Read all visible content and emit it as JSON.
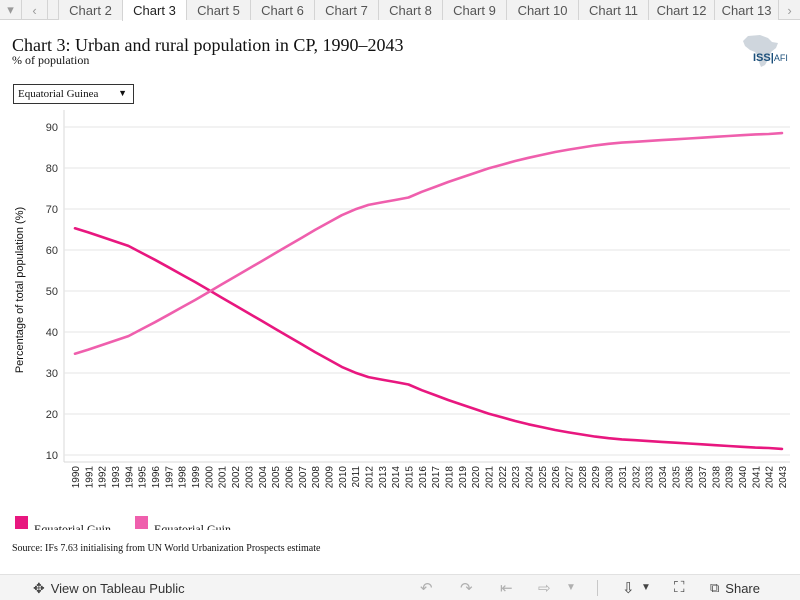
{
  "tabs": {
    "items": [
      "Chart 2",
      "Chart 3",
      "Chart 5",
      "Chart 6",
      "Chart 7",
      "Chart 8",
      "Chart 9",
      "Chart 10",
      "Chart 11",
      "Chart 12",
      "Chart 13"
    ],
    "active_index": 1
  },
  "header": {
    "title": "Chart 3: Urban and rural population in CP, 1990–2043",
    "subtitle": "% of population",
    "logo_text": "ISS",
    "logo_sub": "AFI"
  },
  "filter": {
    "selected": "Equatorial Guinea"
  },
  "source": "Source: IFs 7.63 initialising from UN World Urbanization Prospects estimate",
  "toolbar": {
    "view_label": "View on Tableau Public",
    "share_label": "Share"
  },
  "colors": {
    "rural": "#e8177f",
    "urban": "#ef5fad",
    "grid": "#e6e6e6"
  },
  "chart_data": {
    "type": "line",
    "title": "Chart 3: Urban and rural population in CP, 1990–2043",
    "subtitle": "% of population",
    "xlabel": "",
    "ylabel": "Percentage of total population (%)",
    "ylim": [
      8,
      92
    ],
    "yticks": [
      10,
      20,
      30,
      40,
      50,
      60,
      70,
      80,
      90
    ],
    "x": [
      1990,
      1991,
      1992,
      1993,
      1994,
      1995,
      1996,
      1997,
      1998,
      1999,
      2000,
      2001,
      2002,
      2003,
      2004,
      2005,
      2006,
      2007,
      2008,
      2009,
      2010,
      2011,
      2012,
      2013,
      2014,
      2015,
      2016,
      2017,
      2018,
      2019,
      2020,
      2021,
      2022,
      2023,
      2024,
      2025,
      2026,
      2027,
      2028,
      2029,
      2030,
      2031,
      2032,
      2033,
      2034,
      2035,
      2036,
      2037,
      2038,
      2039,
      2040,
      2041,
      2042,
      2043
    ],
    "grid": true,
    "legend": "bottom-left",
    "series": [
      {
        "name": "Equatorial Guin",
        "color": "#e8177f",
        "values": [
          65.3,
          64.3,
          63.2,
          62.1,
          61.0,
          59.3,
          57.6,
          55.8,
          54.0,
          52.2,
          50.3,
          48.4,
          46.5,
          44.6,
          42.7,
          40.8,
          38.9,
          37.0,
          35.1,
          33.3,
          31.5,
          30.1,
          29.0,
          28.4,
          27.8,
          27.2,
          25.8,
          24.6,
          23.4,
          22.3,
          21.2,
          20.1,
          19.2,
          18.3,
          17.5,
          16.8,
          16.1,
          15.5,
          15.0,
          14.5,
          14.1,
          13.8,
          13.6,
          13.4,
          13.2,
          13.0,
          12.8,
          12.6,
          12.4,
          12.2,
          12.0,
          11.8,
          11.7,
          11.5
        ]
      },
      {
        "name": "Equatorial Guin",
        "color": "#ef5fad",
        "values": [
          34.7,
          35.7,
          36.8,
          37.9,
          39.0,
          40.7,
          42.4,
          44.2,
          46.0,
          47.8,
          49.7,
          51.6,
          53.5,
          55.4,
          57.3,
          59.2,
          61.1,
          63.0,
          64.9,
          66.7,
          68.5,
          69.9,
          71.0,
          71.6,
          72.2,
          72.8,
          74.2,
          75.4,
          76.6,
          77.7,
          78.8,
          79.9,
          80.8,
          81.7,
          82.5,
          83.2,
          83.9,
          84.5,
          85.0,
          85.5,
          85.9,
          86.2,
          86.4,
          86.6,
          86.8,
          87.0,
          87.2,
          87.4,
          87.6,
          87.8,
          88.0,
          88.2,
          88.3,
          88.5
        ]
      }
    ]
  }
}
